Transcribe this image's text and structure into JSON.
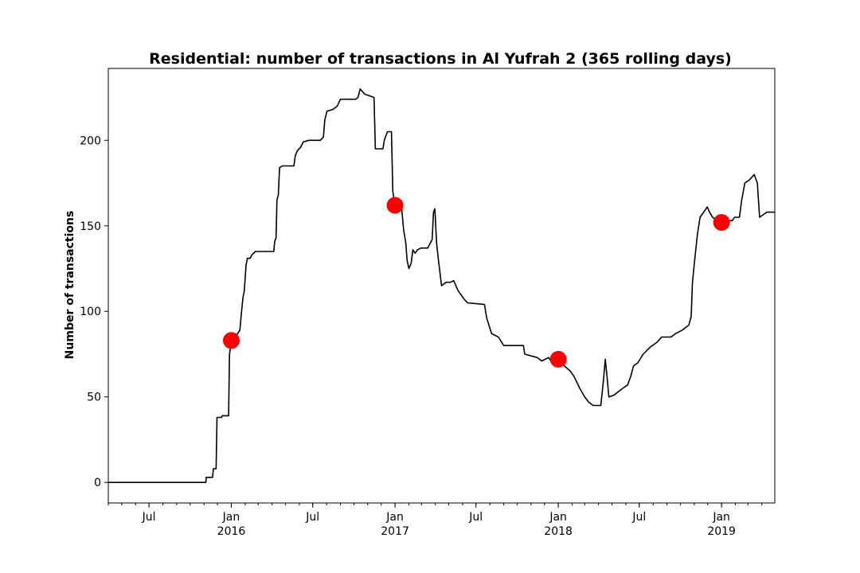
{
  "chart_data": {
    "type": "line",
    "title": "Residential: number of transactions in Al Yufrah 2 (365 rolling days)",
    "xlabel": "",
    "ylabel": "Number of transactions",
    "ylim": [
      -12,
      242
    ],
    "xlim": [
      "2015-04-01",
      "2019-04-30"
    ],
    "grid": false,
    "y_ticks": [
      0,
      50,
      100,
      150,
      200
    ],
    "x_ticks": [
      {
        "date": "2015-07-01",
        "label": "Jul",
        "year": ""
      },
      {
        "date": "2016-01-01",
        "label": "Jan",
        "year": "2016"
      },
      {
        "date": "2016-07-01",
        "label": "Jul",
        "year": ""
      },
      {
        "date": "2017-01-01",
        "label": "Jan",
        "year": "2017"
      },
      {
        "date": "2017-07-01",
        "label": "Jul",
        "year": ""
      },
      {
        "date": "2018-01-01",
        "label": "Jan",
        "year": "2018"
      },
      {
        "date": "2018-07-01",
        "label": "Jul",
        "year": ""
      },
      {
        "date": "2019-01-01",
        "label": "Jan",
        "year": "2019"
      }
    ],
    "line_color": "#000000",
    "marker_color": "#ff0000",
    "series": [
      {
        "points": [
          [
            "2015-04-01",
            0
          ],
          [
            "2015-11-05",
            0
          ],
          [
            "2015-11-06",
            3
          ],
          [
            "2015-11-20",
            3
          ],
          [
            "2015-11-22",
            8
          ],
          [
            "2015-11-28",
            8
          ],
          [
            "2015-11-30",
            38
          ],
          [
            "2015-12-10",
            38
          ],
          [
            "2015-12-12",
            39
          ],
          [
            "2015-12-26",
            39
          ],
          [
            "2015-12-28",
            75
          ],
          [
            "2016-01-02",
            83
          ],
          [
            "2016-01-10",
            85
          ],
          [
            "2016-01-20",
            89
          ],
          [
            "2016-01-24",
            100
          ],
          [
            "2016-01-27",
            108
          ],
          [
            "2016-01-30",
            112
          ],
          [
            "2016-02-03",
            127
          ],
          [
            "2016-02-06",
            131
          ],
          [
            "2016-02-12",
            131
          ],
          [
            "2016-02-16",
            133
          ],
          [
            "2016-02-24",
            135
          ],
          [
            "2016-04-05",
            135
          ],
          [
            "2016-04-07",
            141
          ],
          [
            "2016-04-10",
            143
          ],
          [
            "2016-04-12",
            165
          ],
          [
            "2016-04-15",
            168
          ],
          [
            "2016-04-18",
            184
          ],
          [
            "2016-04-24",
            185
          ],
          [
            "2016-05-20",
            185
          ],
          [
            "2016-05-23",
            191
          ],
          [
            "2016-05-28",
            194
          ],
          [
            "2016-06-04",
            196
          ],
          [
            "2016-06-10",
            199
          ],
          [
            "2016-06-22",
            200
          ],
          [
            "2016-07-18",
            200
          ],
          [
            "2016-07-25",
            202
          ],
          [
            "2016-07-28",
            212
          ],
          [
            "2016-08-02",
            217
          ],
          [
            "2016-08-15",
            218
          ],
          [
            "2016-08-25",
            220
          ],
          [
            "2016-09-01",
            224
          ],
          [
            "2016-10-05",
            224
          ],
          [
            "2016-10-10",
            225
          ],
          [
            "2016-10-15",
            230
          ],
          [
            "2016-10-25",
            227
          ],
          [
            "2016-11-05",
            226
          ],
          [
            "2016-11-15",
            225
          ],
          [
            "2016-11-18",
            195
          ],
          [
            "2016-12-05",
            195
          ],
          [
            "2016-12-08",
            200
          ],
          [
            "2016-12-15",
            205
          ],
          [
            "2016-12-24",
            205
          ],
          [
            "2016-12-27",
            170
          ],
          [
            "2017-01-01",
            162
          ],
          [
            "2017-01-08",
            158
          ],
          [
            "2017-01-15",
            163
          ],
          [
            "2017-01-20",
            148
          ],
          [
            "2017-01-25",
            140
          ],
          [
            "2017-01-28",
            130
          ],
          [
            "2017-02-01",
            125
          ],
          [
            "2017-02-06",
            128
          ],
          [
            "2017-02-10",
            136
          ],
          [
            "2017-02-15",
            134
          ],
          [
            "2017-02-20",
            136
          ],
          [
            "2017-02-28",
            137
          ],
          [
            "2017-03-15",
            137
          ],
          [
            "2017-03-25",
            142
          ],
          [
            "2017-03-28",
            158
          ],
          [
            "2017-03-31",
            160
          ],
          [
            "2017-04-04",
            140
          ],
          [
            "2017-04-08",
            130
          ],
          [
            "2017-04-15",
            115
          ],
          [
            "2017-04-25",
            117
          ],
          [
            "2017-05-05",
            117
          ],
          [
            "2017-05-12",
            118
          ],
          [
            "2017-05-22",
            112
          ],
          [
            "2017-06-05",
            107
          ],
          [
            "2017-06-12",
            105
          ],
          [
            "2017-07-20",
            104
          ],
          [
            "2017-07-25",
            96
          ],
          [
            "2017-08-05",
            87
          ],
          [
            "2017-08-20",
            85
          ],
          [
            "2017-09-01",
            80
          ],
          [
            "2017-10-15",
            80
          ],
          [
            "2017-10-18",
            75
          ],
          [
            "2017-11-15",
            73
          ],
          [
            "2017-11-25",
            71
          ],
          [
            "2017-12-10",
            73
          ],
          [
            "2017-12-18",
            70
          ],
          [
            "2017-12-25",
            74
          ],
          [
            "2018-01-01",
            72
          ],
          [
            "2018-01-15",
            68
          ],
          [
            "2018-01-28",
            65
          ],
          [
            "2018-02-05",
            62
          ],
          [
            "2018-02-18",
            55
          ],
          [
            "2018-03-01",
            50
          ],
          [
            "2018-03-10",
            47
          ],
          [
            "2018-03-20",
            45
          ],
          [
            "2018-04-06",
            45
          ],
          [
            "2018-04-12",
            60
          ],
          [
            "2018-04-16",
            72
          ],
          [
            "2018-04-20",
            62
          ],
          [
            "2018-04-24",
            50
          ],
          [
            "2018-05-05",
            51
          ],
          [
            "2018-05-15",
            53
          ],
          [
            "2018-05-25",
            55
          ],
          [
            "2018-06-05",
            57
          ],
          [
            "2018-06-12",
            62
          ],
          [
            "2018-06-18",
            68
          ],
          [
            "2018-06-28",
            70
          ],
          [
            "2018-07-10",
            75
          ],
          [
            "2018-07-25",
            79
          ],
          [
            "2018-08-10",
            82
          ],
          [
            "2018-08-20",
            85
          ],
          [
            "2018-09-10",
            85
          ],
          [
            "2018-09-20",
            87
          ],
          [
            "2018-10-05",
            89
          ],
          [
            "2018-10-20",
            92
          ],
          [
            "2018-10-25",
            97
          ],
          [
            "2018-10-28",
            117
          ],
          [
            "2018-11-02",
            130
          ],
          [
            "2018-11-08",
            145
          ],
          [
            "2018-11-14",
            155
          ],
          [
            "2018-11-22",
            158
          ],
          [
            "2018-11-30",
            161
          ],
          [
            "2018-12-05",
            158
          ],
          [
            "2018-12-12",
            155
          ],
          [
            "2018-12-22",
            153
          ],
          [
            "2019-01-01",
            152
          ],
          [
            "2019-01-10",
            153
          ],
          [
            "2019-01-25",
            153
          ],
          [
            "2019-01-30",
            155
          ],
          [
            "2019-02-10",
            155
          ],
          [
            "2019-02-15",
            165
          ],
          [
            "2019-02-22",
            175
          ],
          [
            "2019-03-05",
            177
          ],
          [
            "2019-03-15",
            180
          ],
          [
            "2019-03-22",
            175
          ],
          [
            "2019-03-27",
            155
          ],
          [
            "2019-04-12",
            158
          ],
          [
            "2019-04-30",
            158
          ]
        ]
      }
    ],
    "markers": [
      {
        "x": "2016-01-01",
        "y": 83
      },
      {
        "x": "2017-01-01",
        "y": 162
      },
      {
        "x": "2018-01-01",
        "y": 72
      },
      {
        "x": "2019-01-01",
        "y": 152
      }
    ]
  }
}
